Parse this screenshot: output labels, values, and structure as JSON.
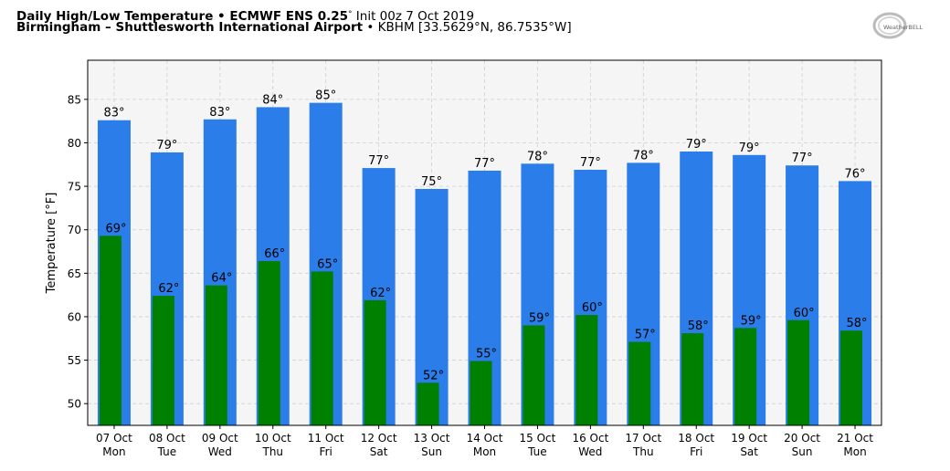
{
  "header": {
    "title_main": "Daily High/Low Temperature • ECMWF ENS 0.25",
    "title_degree": "°",
    "title_init": " Init 00z 7 Oct 2019",
    "location_main": "Birmingham – Shuttlesworth International Airport",
    "location_rest": " • KBHM [33.5629°N, 86.7535°W]",
    "logo_text": "WeatherBELL"
  },
  "chart_data": {
    "type": "bar",
    "title": "Daily High/Low Temperature • ECMWF ENS 0.25° Init 00z 7 Oct 2019",
    "subtitle": "Birmingham – Shuttlesworth International Airport • KBHM [33.5629°N, 86.7535°W]",
    "ylabel": "Temperature [°F]",
    "xlabel": "",
    "ylim": [
      47.5,
      89.5
    ],
    "yticks": [
      50,
      55,
      60,
      65,
      70,
      75,
      80,
      85
    ],
    "grid": true,
    "categories": [
      "07 Oct|Mon",
      "08 Oct|Tue",
      "09 Oct|Wed",
      "10 Oct|Thu",
      "11 Oct|Fri",
      "12 Oct|Sat",
      "13 Oct|Sun",
      "14 Oct|Mon",
      "15 Oct|Tue",
      "16 Oct|Wed",
      "17 Oct|Thu",
      "18 Oct|Fri",
      "19 Oct|Sat",
      "20 Oct|Sun",
      "21 Oct|Mon"
    ],
    "series": [
      {
        "name": "",
        "color": "#2b7de9",
        "values": [
          82.6,
          78.9,
          82.7,
          84.1,
          84.6,
          77.1,
          74.7,
          76.8,
          77.6,
          76.9,
          77.7,
          79.0,
          78.6,
          77.4,
          75.6
        ],
        "labels": [
          "83°",
          "79°",
          "83°",
          "84°",
          "85°",
          "77°",
          "75°",
          "77°",
          "78°",
          "77°",
          "78°",
          "79°",
          "79°",
          "77°",
          "76°"
        ]
      },
      {
        "name": "",
        "color": "#008000",
        "values": [
          69.3,
          62.4,
          63.6,
          66.4,
          65.2,
          61.9,
          52.4,
          54.9,
          59.0,
          60.2,
          57.1,
          58.1,
          58.7,
          59.6,
          58.4
        ],
        "labels": [
          "69°",
          "62°",
          "64°",
          "66°",
          "65°",
          "62°",
          "52°",
          "55°",
          "59°",
          "60°",
          "57°",
          "58°",
          "59°",
          "60°",
          "58°"
        ]
      }
    ]
  }
}
